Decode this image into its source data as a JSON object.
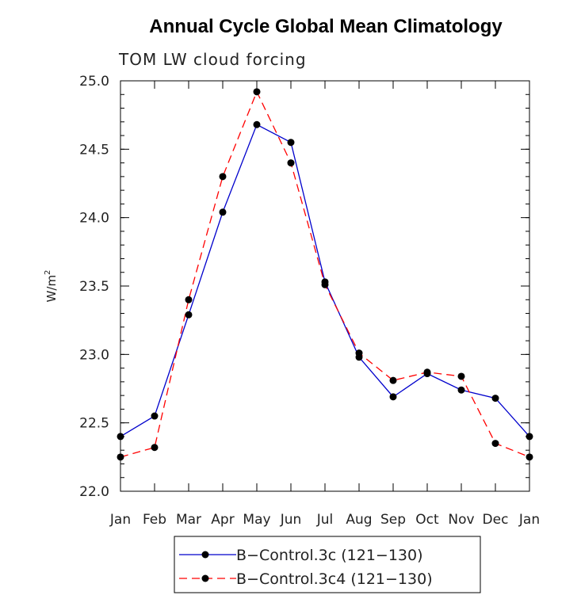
{
  "chart_data": {
    "type": "line",
    "title": "Annual Cycle Global Mean Climatology",
    "subtitle": "TOM LW cloud forcing",
    "ylabel_base": "W/m",
    "ylabel_sup": "2",
    "ylim": [
      22.0,
      25.0
    ],
    "yticks": [
      22.0,
      22.5,
      23.0,
      23.5,
      24.0,
      24.5,
      25.0
    ],
    "ytick_labels": [
      "22.0",
      "22.5",
      "23.0",
      "23.5",
      "24.0",
      "24.5",
      "25.0"
    ],
    "categories": [
      "Jan",
      "Feb",
      "Mar",
      "Apr",
      "May",
      "Jun",
      "Jul",
      "Aug",
      "Sep",
      "Oct",
      "Nov",
      "Dec",
      "Jan"
    ],
    "series": [
      {
        "name": "B−Control.3c (121−130)",
        "color": "#0000cc",
        "dash": "solid",
        "values": [
          22.4,
          22.55,
          23.29,
          24.04,
          24.68,
          24.55,
          23.53,
          22.98,
          22.69,
          22.86,
          22.74,
          22.68,
          22.4
        ]
      },
      {
        "name": "B−Control.3c4 (121−130)",
        "color": "#ff0000",
        "dash": "dashed",
        "values": [
          22.25,
          22.32,
          23.4,
          24.3,
          24.92,
          24.4,
          23.51,
          23.01,
          22.81,
          22.87,
          22.84,
          22.35,
          22.25
        ]
      }
    ]
  }
}
